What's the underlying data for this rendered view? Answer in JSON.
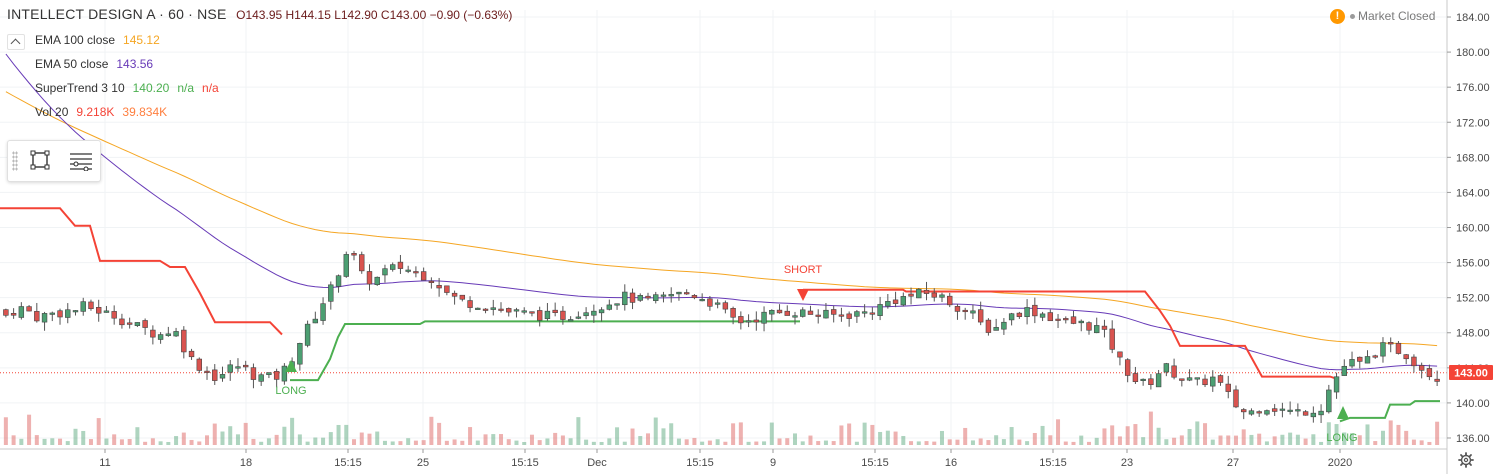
{
  "header": {
    "symbol": "INTELLECT DESIGN A · 60 · NSE",
    "ohlc": "O143.95 H144.15 L142.90 C143.00 −0.90 (−0.63%)"
  },
  "indicators": [
    {
      "name": "EMA 100 close",
      "values": [
        "145.12"
      ],
      "colors": [
        "#f5a623"
      ]
    },
    {
      "name": "EMA 50 close",
      "values": [
        "143.56"
      ],
      "colors": [
        "#673ab7"
      ]
    },
    {
      "name": "SuperTrend 3 10",
      "values": [
        "140.20",
        "n/a",
        "n/a"
      ],
      "colors": [
        "#4caf50",
        "#4caf50",
        "#f44336"
      ]
    },
    {
      "name": "Vol 20",
      "values": [
        "9.218K",
        "39.834K"
      ],
      "colors": [
        "#f44336",
        "#ff7f3f"
      ]
    }
  ],
  "status": {
    "icon": "warning-icon",
    "text": "Market Closed"
  },
  "toolbar": {
    "tools": [
      "rectangle-icon",
      "object-tree-icon"
    ]
  },
  "colors": {
    "up": "#4c9f72",
    "down": "#d9534f",
    "ema100": "#f5a623",
    "ema50": "#673ab7",
    "supertrend_up": "#4caf50",
    "supertrend_down": "#f44336"
  },
  "chart_data": {
    "type": "candlestick",
    "title": "INTELLECT DESIGN A · 60 · NSE",
    "y_axis": {
      "ticks": [
        136,
        140,
        144,
        148,
        152,
        156,
        160,
        164,
        168,
        172,
        176,
        180,
        184
      ],
      "range": [
        135.2,
        184.8
      ],
      "position": "right"
    },
    "x_axis": {
      "ticks": [
        "11",
        "18",
        "15:15",
        "25",
        "15:15",
        "Dec",
        "15:15",
        "9",
        "15:15",
        "16",
        "15:15",
        "23",
        "27",
        "2020"
      ]
    },
    "last_price": {
      "value": 143.0,
      "label": "143.00",
      "color": "#f44336"
    },
    "close": [
      150,
      150.5,
      150.8,
      150.4,
      149.8,
      150,
      150.2,
      150.3,
      150.5,
      150.6,
      151.0,
      150.8,
      150.5,
      150.2,
      150.0,
      149.5,
      149.0,
      148.7,
      148.4,
      148.0,
      147.8,
      148.2,
      148.0,
      146.4,
      145.0,
      144.2,
      143.6,
      143.0,
      143.3,
      144.0,
      144.2,
      143.8,
      143.2,
      143.0,
      142.9,
      143.0,
      143.8,
      145.2,
      147.0,
      148.5,
      150.0,
      151.5,
      153.0,
      155.0,
      157.2,
      156.5,
      154.5,
      154.0,
      154.2,
      155.0,
      155.3,
      155.5,
      155.2,
      154.9,
      154.6,
      154.2,
      153.5,
      152.5,
      152.0,
      151.6,
      151.4,
      151.3,
      151.1,
      150.9,
      150.6,
      150.4,
      150.3,
      150.2,
      150.1,
      150.0,
      149.9,
      149.8,
      149.9,
      150.0,
      150.4,
      150.6,
      150.9,
      151.2,
      151.5,
      151.8,
      152.1,
      151.9,
      151.7,
      151.6,
      151.8,
      152.0,
      152.3,
      152.4,
      152.5,
      152.3,
      152.0,
      151.5,
      151.0,
      150.2,
      149.6,
      149.3,
      149.5,
      149.7,
      150.0,
      150.2,
      150.3,
      150.4,
      150.4,
      150.3,
      150.2,
      150.1,
      150.0,
      150.0,
      150.0,
      150.1,
      150.2,
      150.3,
      150.6,
      151.0,
      151.5,
      151.8,
      152.0,
      152.2,
      152.4,
      152.5,
      152.3,
      152.0,
      151.5,
      151.0,
      150.5,
      150.0,
      149.0,
      148.5,
      148.6,
      149.5,
      150.0,
      150.4,
      150.6,
      150.4,
      150.2,
      149.8,
      149.5,
      149.2,
      149.1,
      149.0,
      148.8,
      148.6,
      147.8,
      146.4,
      144.8,
      143.6,
      142.6,
      142.2,
      142.5,
      143.5,
      144.0,
      143.4,
      142.8,
      142.5,
      142.3,
      142.5,
      142.8,
      142.0,
      140.8,
      139.7,
      139.0,
      139.0,
      139.5,
      139.6,
      139.4,
      139.2,
      139.0,
      139.0,
      139.1,
      139.3,
      139.5,
      141.5,
      143.0,
      144.2,
      144.6,
      144.4,
      145.0,
      145.8,
      146.3,
      146.2,
      146.0,
      145.5,
      144.8,
      144.0,
      143.4,
      143.0
    ]
  }
}
